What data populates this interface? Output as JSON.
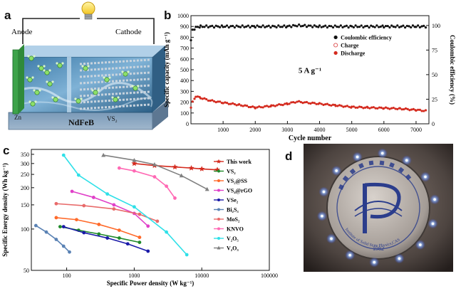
{
  "panels": {
    "a": {
      "label": "a",
      "anode_label": "Anode",
      "cathode_label": "Cathode",
      "zn_label": "Zn",
      "vs2_label": "VS₂",
      "substrate_label": "NdFeB"
    },
    "b": {
      "label": "b"
    },
    "c": {
      "label": "c"
    },
    "d": {
      "label": "d",
      "logo_text_bottom": "Institute of Solid State Physics,CAS",
      "logo_year": "1982"
    }
  },
  "chart_data": [
    {
      "type": "scatter",
      "panel": "b",
      "xlabel": "Cycle number",
      "ylabel_left": "Specific capacity (mAh g⁻¹)",
      "ylabel_right": "Coulombic efficiency (%)",
      "xlim": [
        0,
        7400
      ],
      "ylim_left": [
        0,
        1000
      ],
      "ylim_right": [
        0,
        110
      ],
      "x_ticks": [
        "1000",
        "2000",
        "3000",
        "4000",
        "5000",
        "6000",
        "7000"
      ],
      "y_ticks_left": [
        "0",
        "100",
        "200",
        "300",
        "400",
        "500",
        "600",
        "700",
        "800",
        "900",
        "1000"
      ],
      "y_ticks_right": [
        "0",
        "25",
        "50",
        "75",
        "100"
      ],
      "annotation": "5 A g⁻¹",
      "legend": [
        "Coulombic efficiency",
        "Charge",
        "Discharge"
      ],
      "colors": {
        "ce": "#111111",
        "charge": "#e06060",
        "discharge": "#d42a1e"
      },
      "series": [
        {
          "name": "Coulombic efficiency",
          "axis": "right",
          "x": [
            0,
            50,
            150,
            300,
            600,
            1000,
            2000,
            3000,
            3300,
            4000,
            5000,
            6000,
            7000,
            7300
          ],
          "values": [
            85,
            95,
            98,
            99,
            99,
            99,
            99,
            99,
            100,
            99,
            99,
            99,
            99,
            99
          ]
        },
        {
          "name": "Discharge",
          "axis": "left",
          "x": [
            0,
            50,
            150,
            300,
            600,
            1000,
            1500,
            2000,
            2500,
            3000,
            3300,
            3600,
            4000,
            4500,
            5000,
            5500,
            6000,
            6500,
            7000,
            7300
          ],
          "values": [
            150,
            200,
            255,
            240,
            215,
            195,
            175,
            150,
            165,
            185,
            205,
            195,
            185,
            170,
            155,
            150,
            145,
            140,
            128,
            120
          ]
        }
      ]
    },
    {
      "type": "line",
      "panel": "c",
      "xlabel": "Specific Power density (W kg⁻¹)",
      "ylabel": "Specific Energy density (Wh kg⁻¹)",
      "x_scale": "log",
      "y_scale": "log",
      "xlim": [
        30,
        100000
      ],
      "ylim": [
        50,
        380
      ],
      "x_ticks": [
        "100",
        "1000",
        "10000",
        "100000"
      ],
      "y_ticks": [
        "50",
        "100",
        "150",
        "200",
        "250",
        "300",
        "350"
      ],
      "legend_position": "right",
      "series": [
        {
          "name": "This work",
          "color": "#d42a1e",
          "marker": "star",
          "x": [
            1000,
            2000,
            4000,
            7000,
            10000,
            17000
          ],
          "values": [
            300,
            290,
            283,
            278,
            274,
            270
          ]
        },
        {
          "name": "VS₂",
          "color": "#1f8a2a",
          "marker": "circle",
          "x": [
            80,
            150,
            300,
            600,
            1200
          ],
          "values": [
            104,
            98,
            92,
            86,
            80
          ]
        },
        {
          "name": "VS₂@SS",
          "color": "#ff6a2a",
          "marker": "circle",
          "x": [
            70,
            140,
            300,
            600,
            1200
          ],
          "values": [
            121,
            117,
            108,
            98,
            87
          ]
        },
        {
          "name": "VS₄@rGO",
          "color": "#e040c8",
          "marker": "circle",
          "x": [
            120,
            250,
            500,
            1000,
            1600
          ],
          "values": [
            188,
            170,
            150,
            130,
            105
          ]
        },
        {
          "name": "VSe₂",
          "color": "#1a1aa8",
          "marker": "circle",
          "x": [
            90,
            180,
            400,
            800,
            1600
          ],
          "values": [
            104,
            94,
            86,
            78,
            69
          ]
        },
        {
          "name": "Bi₂S₃",
          "color": "#5a82b4",
          "marker": "circle",
          "x": [
            35,
            50,
            70,
            90,
            110
          ],
          "values": [
            106,
            95,
            84,
            75,
            68
          ]
        },
        {
          "name": "MoS₂",
          "color": "#e86a6a",
          "marker": "circle",
          "x": [
            70,
            180,
            500,
            1200,
            2200
          ],
          "values": [
            153,
            148,
            140,
            128,
            114
          ]
        },
        {
          "name": "KNVO",
          "color": "#ff69b4",
          "marker": "circle",
          "x": [
            600,
            1000,
            2000,
            3000,
            4000
          ],
          "values": [
            278,
            265,
            240,
            205,
            168
          ]
        },
        {
          "name": "V₂O₅",
          "color": "#2fe0e8",
          "marker": "circle",
          "x": [
            90,
            150,
            400,
            1000,
            3000,
            6000
          ],
          "values": [
            345,
            247,
            180,
            145,
            95,
            65
          ]
        },
        {
          "name": "V₂O₃",
          "color": "#808080",
          "marker": "triangle",
          "x": [
            350,
            1000,
            2000,
            5000,
            12000
          ],
          "values": [
            345,
            317,
            295,
            245,
            195
          ]
        }
      ]
    }
  ]
}
